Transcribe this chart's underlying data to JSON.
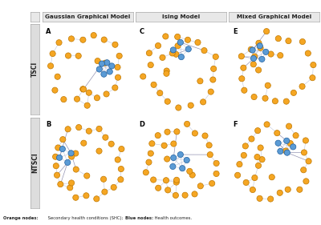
{
  "title_cols": [
    "Gaussian Graphical Model",
    "Ising Model",
    "Mixed Graphical Model"
  ],
  "title_rows": [
    "TSCI",
    "NTSCI"
  ],
  "panel_labels": [
    [
      "A",
      "C",
      "E"
    ],
    [
      "B",
      "D",
      "F"
    ]
  ],
  "orange_color": "#F5A623",
  "blue_color": "#5B9BD5",
  "edge_color_light": "#B0B8D0",
  "edge_color_dark": "#8888AA",
  "node_border_orange": "#C07800",
  "node_border_blue": "#2060A0",
  "bg_color": "#FFFFFF",
  "panel_border": "#BBBBBB",
  "header_bg": "#E8E8E8",
  "row_label_bg": "#DDDDDD",
  "legend_text": "Orange nodes: Secondary health conditions (SHC); Blue nodes: Health outcomes.",
  "figsize": [
    4.0,
    2.81
  ],
  "dpi": 100
}
